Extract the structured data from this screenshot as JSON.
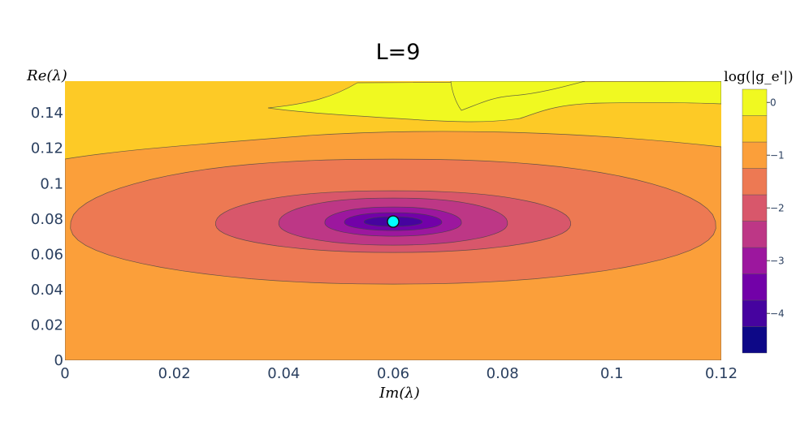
{
  "chart_data": {
    "type": "contour",
    "title": "L=9",
    "xlabel": "Im(λ)",
    "ylabel": "Re(λ)",
    "xlim": [
      0,
      0.12
    ],
    "ylim": [
      0,
      0.158
    ],
    "x_ticks": [
      0,
      0.02,
      0.04,
      0.06,
      0.08,
      0.1,
      0.12
    ],
    "x_tick_labels": [
      "0",
      "0.02",
      "0.04",
      "0.06",
      "0.08",
      "0.1",
      "0.12"
    ],
    "y_ticks": [
      0,
      0.02,
      0.04,
      0.06,
      0.08,
      0.1,
      0.12,
      0.14
    ],
    "y_tick_labels": [
      "0",
      "0.02",
      "0.04",
      "0.06",
      "0.08",
      "0.1",
      "0.12",
      "0.14"
    ],
    "colorbar": {
      "title": "log(|g_e'|)",
      "range": [
        -4.75,
        0.25
      ],
      "ticks": [
        0,
        -1,
        -2,
        -3,
        -4
      ],
      "tick_labels": [
        "0",
        "−1",
        "−2",
        "−3",
        "−4"
      ],
      "level_step": 0.5
    },
    "colorscale": [
      "#0d0887",
      "#46039f",
      "#7201a8",
      "#9c179e",
      "#bd3786",
      "#d8576b",
      "#ed7953",
      "#fb9f3a",
      "#fdca26",
      "#f0f921"
    ],
    "marker": {
      "x": 0.06,
      "y": 0.0785,
      "color": "#00ffff"
    },
    "minimum": {
      "x": 0.06,
      "y": 0.0785,
      "value": -4.6
    },
    "grid": false
  }
}
